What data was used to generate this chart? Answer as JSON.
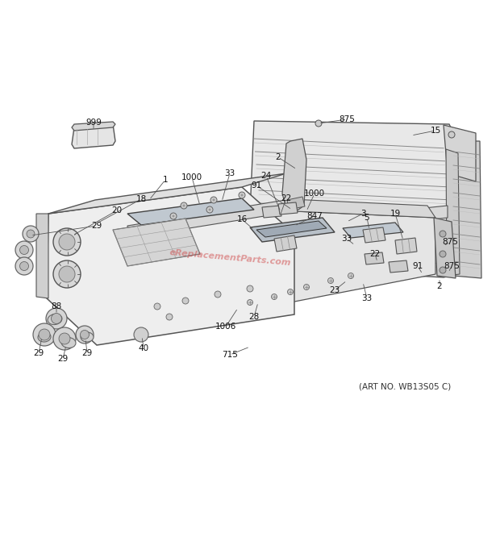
{
  "bg_color": "#ffffff",
  "fig_width": 6.2,
  "fig_height": 6.61,
  "dpi": 100,
  "art_no": "(ART NO. WB13S05 C)",
  "watermark": "eReplacementParts.com",
  "watermark_color": "#cc3333",
  "watermark_alpha": 0.45,
  "line_color": "#555555",
  "light_gray": "#d8d8d8",
  "mid_gray": "#c0c0c0",
  "dark_gray": "#888888",
  "panel_color": "#eeeeee",
  "panel_top_color": "#dcdcdc",
  "back_panel_color": "#e0e0e0"
}
